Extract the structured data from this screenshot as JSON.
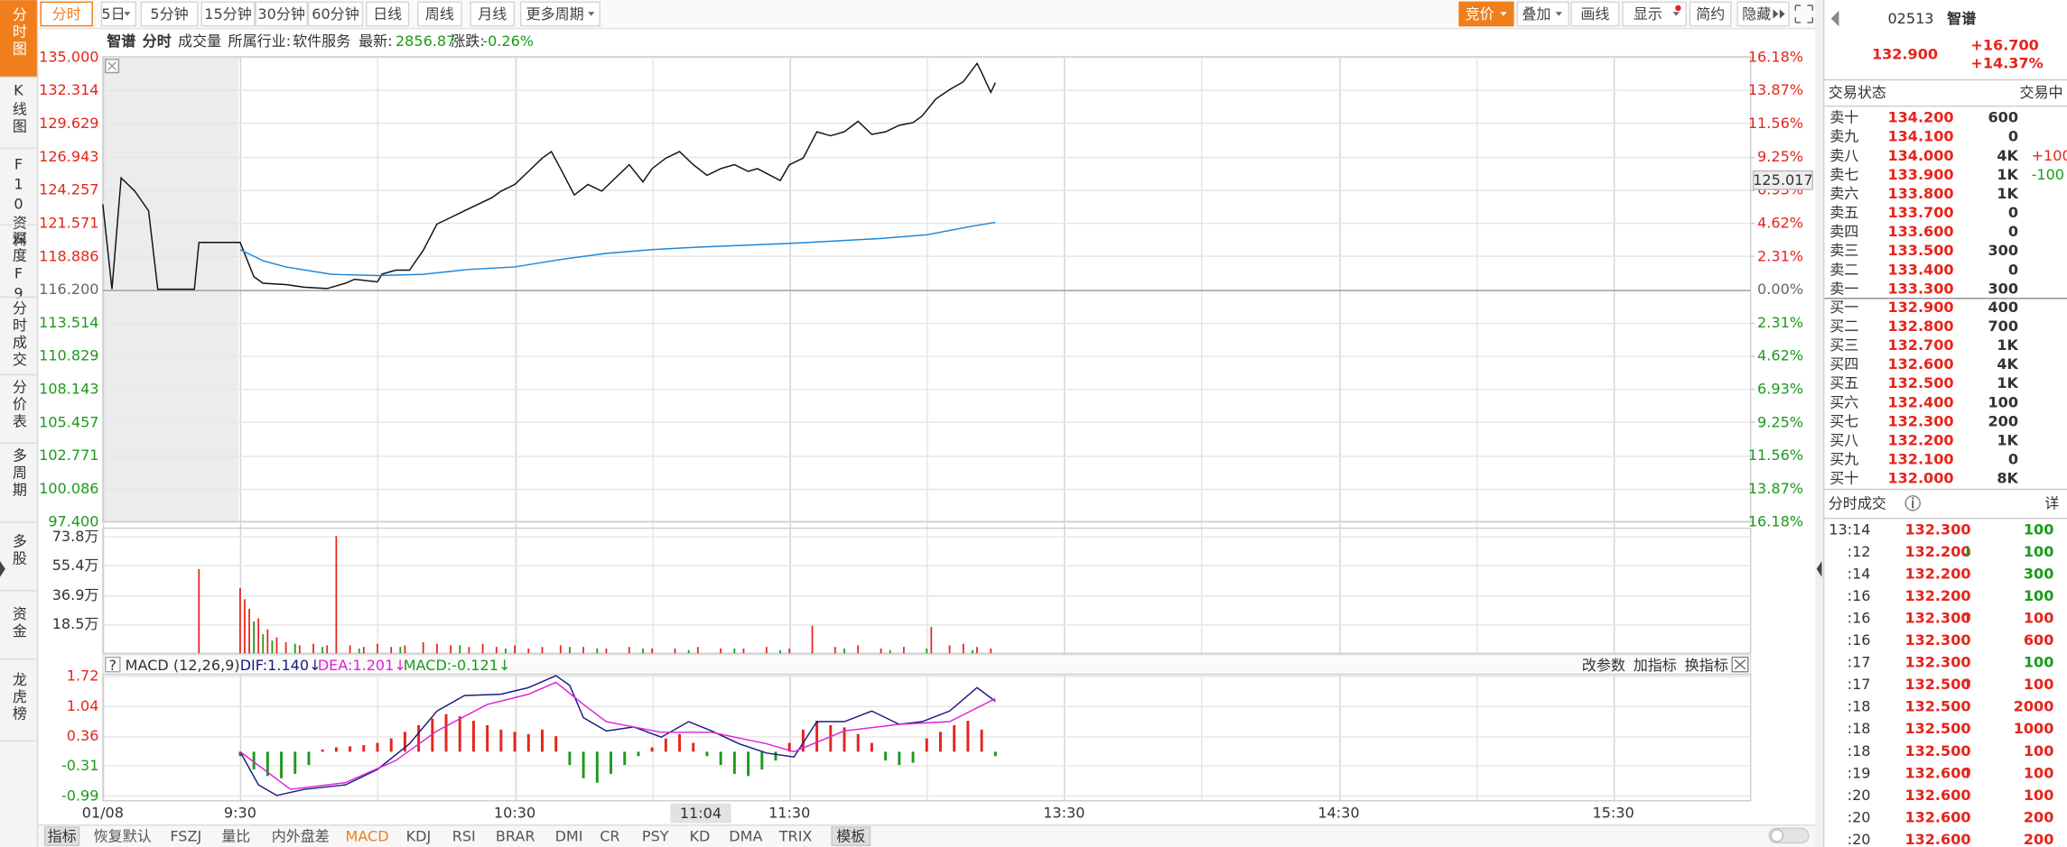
{
  "sidebar": [
    "分时图",
    "K线图",
    "F10资料",
    "深度F9",
    "分时成交",
    "分价表",
    "多周期",
    "多股",
    "资金",
    "龙虎榜"
  ],
  "toolbar": {
    "left": [
      "分时",
      "5日",
      "5分钟",
      "15分钟",
      "30分钟",
      "60分钟",
      "日线",
      "周线",
      "月线",
      "更多周期"
    ],
    "right": [
      "竞价",
      "叠加",
      "画线",
      "显示",
      "简约",
      "隐藏"
    ]
  },
  "info_bar": {
    "name": "智谱",
    "mode": "分时",
    "indicator": "成交量",
    "industry_label": "所属行业:",
    "industry": "软件服务",
    "latest_label": "最新:",
    "latest": "2856.87",
    "change_label": "涨跌:",
    "change": "-0.26%"
  },
  "price_chart": {
    "type": "line",
    "xlim": [
      -30,
      330
    ],
    "xticks": [
      {
        "value": -30,
        "label": "01/08"
      },
      {
        "value": 0,
        "label": "9:30"
      },
      {
        "value": 60,
        "label": "10:30"
      },
      {
        "value": 120,
        "label": "11:30"
      },
      {
        "value": 180,
        "label": "13:30"
      },
      {
        "value": 240,
        "label": "14:30"
      },
      {
        "value": 300,
        "label": "15:30"
      }
    ],
    "minor_xticks": [
      30,
      90,
      150,
      210,
      270
    ],
    "ylim": [
      97.4,
      135.0
    ],
    "yticks": [
      {
        "value": 135.0,
        "label": "135.000"
      },
      {
        "value": 132.314,
        "label": "132.314"
      },
      {
        "value": 129.629,
        "label": "129.629"
      },
      {
        "value": 126.943,
        "label": "126.943"
      },
      {
        "value": 124.257,
        "label": "124.257"
      },
      {
        "value": 121.571,
        "label": "121.571"
      },
      {
        "value": 118.886,
        "label": "118.886"
      },
      {
        "value": 116.2,
        "label": "116.200"
      },
      {
        "value": 113.514,
        "label": "113.514"
      },
      {
        "value": 110.829,
        "label": "110.829"
      },
      {
        "value": 108.143,
        "label": "108.143"
      },
      {
        "value": 105.457,
        "label": "105.457"
      },
      {
        "value": 102.771,
        "label": "102.771"
      },
      {
        "value": 100.086,
        "label": "100.086"
      },
      {
        "value": 97.4,
        "label": "97.400"
      }
    ],
    "y2lim": [
      -16.18,
      16.18
    ],
    "y2ticks": [
      {
        "value": 16.18,
        "label": "16.18%"
      },
      {
        "value": 13.87,
        "label": "13.87%"
      },
      {
        "value": 11.56,
        "label": "11.56%"
      },
      {
        "value": 9.25,
        "label": "9.25%"
      },
      {
        "value": 6.93,
        "label": "6.93%"
      },
      {
        "value": 4.62,
        "label": "4.62%"
      },
      {
        "value": 2.31,
        "label": "2.31%"
      },
      {
        "value": 0,
        "label": "0.00%"
      },
      {
        "value": -2.31,
        "label": "2.31%"
      },
      {
        "value": -4.62,
        "label": "4.62%"
      },
      {
        "value": -6.93,
        "label": "6.93%"
      },
      {
        "value": -9.25,
        "label": "9.25%"
      },
      {
        "value": -11.56,
        "label": "11.56%"
      },
      {
        "value": -13.87,
        "label": "13.87%"
      },
      {
        "value": -16.18,
        "label": "16.18%"
      }
    ],
    "up_color": "#e6241b",
    "down_color": "#1b9a1b",
    "series": [
      {
        "color": "#111111",
        "x": [
          -30,
          -28,
          -26,
          -23,
          -20,
          -18,
          -10,
          -9,
          0,
          3,
          5,
          10,
          14,
          19,
          23,
          25,
          30,
          31,
          34,
          37,
          40,
          43,
          46,
          49,
          52,
          55,
          57,
          60,
          63,
          66,
          68,
          70,
          73,
          76,
          79,
          82,
          85,
          88,
          90,
          93,
          96,
          99,
          102,
          105,
          108,
          111,
          113,
          118,
          120,
          123,
          126,
          129,
          132,
          135,
          138,
          141,
          144,
          147,
          149,
          152,
          155,
          158,
          161,
          162,
          164,
          165
        ],
        "values": [
          123.07,
          116.2,
          125.2,
          124.13,
          122.54,
          116.2,
          116.2,
          119.98,
          119.98,
          117.21,
          116.68,
          116.57,
          116.36,
          116.25,
          116.68,
          117.0,
          116.79,
          117.42,
          117.74,
          117.74,
          119.34,
          121.47,
          122.0,
          122.54,
          123.07,
          123.6,
          124.13,
          124.67,
          125.73,
          126.8,
          127.33,
          125.95,
          123.82,
          124.67,
          124.13,
          125.2,
          126.27,
          124.88,
          125.95,
          126.8,
          127.33,
          126.27,
          125.41,
          125.95,
          126.27,
          125.73,
          125.95,
          124.99,
          126.27,
          126.8,
          128.93,
          128.61,
          128.93,
          129.78,
          128.72,
          128.93,
          129.46,
          129.67,
          130.21,
          131.59,
          132.34,
          132.98,
          134.47,
          133.72,
          132.12,
          132.9
        ]
      },
      {
        "color": "#1f86d6",
        "x": [
          0,
          5,
          10,
          20,
          30,
          40,
          50,
          60,
          70,
          80,
          90,
          100,
          120,
          140,
          150,
          160,
          165
        ],
        "values": [
          119.4,
          118.5,
          118.0,
          117.4,
          117.3,
          117.4,
          117.8,
          118.0,
          118.6,
          119.1,
          119.4,
          119.6,
          119.9,
          120.3,
          120.6,
          121.3,
          121.6
        ]
      }
    ],
    "cursor": {
      "price": 125.017,
      "time": {
        "value": 94,
        "label": "11:04"
      }
    }
  },
  "volume_chart": {
    "type": "bar",
    "ylim": [
      0,
      73.8
    ],
    "yticks": [
      {
        "value": 73.8,
        "label": "73.8万"
      },
      {
        "value": 55.4,
        "label": "55.4万"
      },
      {
        "value": 36.9,
        "label": "36.9万"
      },
      {
        "value": 18.5,
        "label": "18.5万"
      }
    ],
    "series": [
      {
        "color": "#e6241b",
        "x": [
          -9,
          0,
          1,
          2,
          4,
          6,
          8,
          10,
          13,
          16,
          19,
          21,
          24,
          27,
          30,
          33,
          36,
          40,
          43,
          46,
          50,
          53,
          56,
          60,
          63,
          66,
          70,
          75,
          80,
          85,
          90,
          95,
          100,
          105,
          110,
          115,
          120,
          125,
          130,
          135,
          140,
          145,
          151,
          155,
          158,
          161,
          164
        ],
        "values": [
          53,
          41,
          34,
          28,
          22,
          15,
          10,
          7,
          5,
          6,
          5,
          73.8,
          5,
          4,
          6,
          4,
          5,
          7,
          6,
          5,
          4,
          6,
          4,
          5,
          3,
          4,
          5,
          4,
          3,
          4,
          3,
          3,
          4,
          3,
          3,
          4,
          3,
          17.4,
          4,
          5,
          3,
          4,
          16.6,
          5,
          6,
          4,
          3
        ]
      },
      {
        "color": "#1b9a1b",
        "x": [
          3,
          5,
          7,
          12,
          18,
          26,
          35,
          48,
          58,
          72,
          78,
          88,
          98,
          108,
          118,
          132,
          142,
          150,
          160
        ],
        "values": [
          20,
          12,
          8,
          6,
          4,
          3,
          4,
          5,
          3,
          4,
          3,
          3,
          2,
          3,
          2,
          3,
          2,
          3,
          2
        ]
      }
    ]
  },
  "macd_chart": {
    "type": "line",
    "title": "MACD (12,26,9)",
    "legend": [
      "DIF:1.140↓",
      "DEA:1.201↓",
      "MACD:-0.121↓"
    ],
    "buttons": [
      "改参数",
      "加指标",
      "换指标"
    ],
    "ylim": [
      -0.99,
      1.72
    ],
    "yticks": [
      1.72,
      1.04,
      0.36,
      -0.31,
      -0.99
    ],
    "series": [
      {
        "type": "line",
        "color": "#1a1a80",
        "x": [
          0,
          4,
          8,
          14,
          23,
          30,
          37,
          43,
          49,
          57,
          63,
          69,
          72,
          75,
          80,
          86,
          92,
          98,
          103,
          109,
          115,
          121,
          126,
          132,
          138,
          144,
          149,
          155,
          161,
          165
        ],
        "values": [
          0,
          -0.75,
          -0.99,
          -0.85,
          -0.75,
          -0.4,
          0.18,
          0.92,
          1.27,
          1.3,
          1.45,
          1.72,
          1.5,
          0.77,
          0.47,
          0.56,
          0.33,
          0.68,
          0.47,
          0.18,
          -0.03,
          -0.12,
          0.68,
          0.68,
          0.92,
          0.62,
          0.68,
          0.92,
          1.45,
          1.14
        ]
      },
      {
        "type": "line",
        "color": "#e020d8",
        "x": [
          0,
          11,
          23,
          34,
          43,
          54,
          63,
          69,
          75,
          80,
          92,
          103,
          115,
          121,
          132,
          144,
          155,
          165
        ],
        "values": [
          0,
          -0.85,
          -0.7,
          -0.2,
          0.47,
          1.07,
          1.3,
          1.57,
          1.07,
          0.68,
          0.44,
          0.44,
          0.18,
          0,
          0.47,
          0.62,
          0.68,
          1.201
        ]
      },
      {
        "type": "bar",
        "color": "#1b9a1b",
        "positive_color": "#e6241b",
        "negative_color": "#1b9a1b",
        "x": [
          0,
          3,
          6,
          9,
          12,
          15,
          18,
          21,
          24,
          27,
          30,
          33,
          36,
          39,
          42,
          45,
          48,
          51,
          54,
          57,
          60,
          63,
          66,
          69,
          72,
          75,
          78,
          81,
          84,
          87,
          90,
          93,
          96,
          99,
          102,
          105,
          108,
          111,
          114,
          117,
          120,
          123,
          126,
          129,
          132,
          135,
          138,
          141,
          144,
          147,
          150,
          153,
          156,
          159,
          162,
          165
        ],
        "values": [
          -0.1,
          -0.4,
          -0.55,
          -0.6,
          -0.5,
          -0.3,
          0.05,
          0.1,
          0.12,
          0.15,
          0.2,
          0.3,
          0.45,
          0.6,
          0.75,
          0.85,
          0.8,
          0.7,
          0.6,
          0.5,
          0.45,
          0.4,
          0.5,
          0.35,
          -0.3,
          -0.6,
          -0.7,
          -0.5,
          -0.3,
          -0.1,
          0.1,
          0.3,
          0.4,
          0.2,
          -0.1,
          -0.3,
          -0.5,
          -0.55,
          -0.4,
          -0.2,
          0.2,
          0.5,
          0.7,
          0.6,
          0.55,
          0.4,
          0.2,
          -0.2,
          -0.3,
          -0.25,
          0.3,
          0.45,
          0.6,
          0.7,
          0.5,
          -0.1
        ]
      }
    ]
  },
  "bottom_tabs": [
    "指标",
    "恢复默认",
    "FSZJ",
    "量比",
    "内外盘差",
    "MACD",
    "KDJ",
    "RSI",
    "BRAR",
    "DMI",
    "CR",
    "PSY",
    "KD",
    "DMA",
    "TRIX",
    "模板"
  ],
  "quote": {
    "code": "02513",
    "name": "智谱",
    "price": "132.900",
    "change": "+16.700",
    "change_pct": "+14.37%",
    "status_label": "交易状态",
    "status": "交易中",
    "asks": [
      {
        "label": "卖十",
        "price": "134.200",
        "volume": "600"
      },
      {
        "label": "卖九",
        "price": "134.100",
        "volume": "0"
      },
      {
        "label": "卖八",
        "price": "134.000",
        "volume": "4K",
        "delta": "+100",
        "delta_color": "#e6241b"
      },
      {
        "label": "卖七",
        "price": "133.900",
        "volume": "1K",
        "delta": "-100",
        "delta_color": "#1b9a1b"
      },
      {
        "label": "卖六",
        "price": "133.800",
        "volume": "1K"
      },
      {
        "label": "卖五",
        "price": "133.700",
        "volume": "0"
      },
      {
        "label": "卖四",
        "price": "133.600",
        "volume": "0"
      },
      {
        "label": "卖三",
        "price": "133.500",
        "volume": "300"
      },
      {
        "label": "卖二",
        "price": "133.400",
        "volume": "0"
      },
      {
        "label": "卖一",
        "price": "133.300",
        "volume": "300"
      }
    ],
    "bids": [
      {
        "label": "买一",
        "price": "132.900",
        "volume": "400"
      },
      {
        "label": "买二",
        "price": "132.800",
        "volume": "700"
      },
      {
        "label": "买三",
        "price": "132.700",
        "volume": "1K"
      },
      {
        "label": "买四",
        "price": "132.600",
        "volume": "4K"
      },
      {
        "label": "买五",
        "price": "132.500",
        "volume": "1K"
      },
      {
        "label": "买六",
        "price": "132.400",
        "volume": "100"
      },
      {
        "label": "买七",
        "price": "132.300",
        "volume": "200"
      },
      {
        "label": "买八",
        "price": "132.200",
        "volume": "1K"
      },
      {
        "label": "买九",
        "price": "132.100",
        "volume": "0"
      },
      {
        "label": "买十",
        "price": "132.000",
        "volume": "8K"
      }
    ],
    "trades_title": "分时成交",
    "trades_detail": "详",
    "trades": [
      {
        "time": "13:14",
        "price": "132.300",
        "volume": "100",
        "color": "#1b9a1b"
      },
      {
        "time": ":12",
        "price": "132.200",
        "arrow": "↓",
        "arrow_color": "#1b9a1b",
        "volume": "100",
        "color": "#1b9a1b"
      },
      {
        "time": ":14",
        "price": "132.200",
        "volume": "300",
        "color": "#1b9a1b"
      },
      {
        "time": ":16",
        "price": "132.200",
        "volume": "100",
        "color": "#1b9a1b"
      },
      {
        "time": ":16",
        "price": "132.300",
        "arrow": "↑",
        "arrow_color": "#e6241b",
        "volume": "100",
        "color": "#e6241b"
      },
      {
        "time": ":16",
        "price": "132.300",
        "volume": "600",
        "color": "#e6241b"
      },
      {
        "time": ":17",
        "price": "132.300",
        "volume": "100",
        "color": "#1b9a1b"
      },
      {
        "time": ":17",
        "price": "132.500",
        "arrow": "↑",
        "arrow_color": "#e6241b",
        "volume": "100",
        "color": "#e6241b"
      },
      {
        "time": ":18",
        "price": "132.500",
        "volume": "2000",
        "color": "#e6241b"
      },
      {
        "time": ":18",
        "price": "132.500",
        "volume": "1000",
        "color": "#e6241b"
      },
      {
        "time": ":18",
        "price": "132.500",
        "volume": "100",
        "color": "#e6241b"
      },
      {
        "time": ":19",
        "price": "132.600",
        "arrow": "↑",
        "arrow_color": "#e6241b",
        "volume": "100",
        "color": "#e6241b"
      },
      {
        "time": ":20",
        "price": "132.600",
        "volume": "100",
        "color": "#e6241b"
      },
      {
        "time": ":20",
        "price": "132.600",
        "volume": "200",
        "color": "#e6241b"
      },
      {
        "time": ":20",
        "price": "132.600",
        "volume": "200",
        "color": "#e6241b"
      }
    ]
  }
}
